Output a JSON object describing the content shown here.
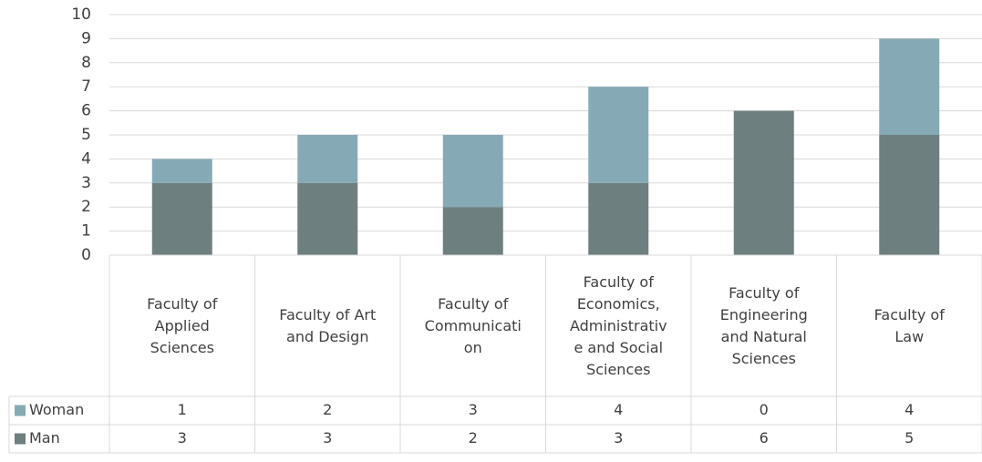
{
  "chart_data": {
    "type": "stacked_bar",
    "categories": [
      "Faculty of Applied Sciences",
      "Faculty of Art and Design",
      "Faculty of Communication",
      "Faculty of Economics, Administrative and Social Sciences",
      "Faculty of Engineering and Natural Sciences",
      "Faculty of Law"
    ],
    "series": [
      {
        "name": "Man",
        "color": "#6e7f80",
        "values": [
          3,
          3,
          2,
          3,
          6,
          5
        ]
      },
      {
        "name": "Woman",
        "color": "#86aab5",
        "values": [
          1,
          2,
          3,
          4,
          0,
          4
        ]
      }
    ],
    "ylim": [
      0,
      10
    ],
    "yticks": [
      0,
      1,
      2,
      3,
      4,
      5,
      6,
      7,
      8,
      9,
      10
    ],
    "grid": true,
    "data_table": true
  }
}
